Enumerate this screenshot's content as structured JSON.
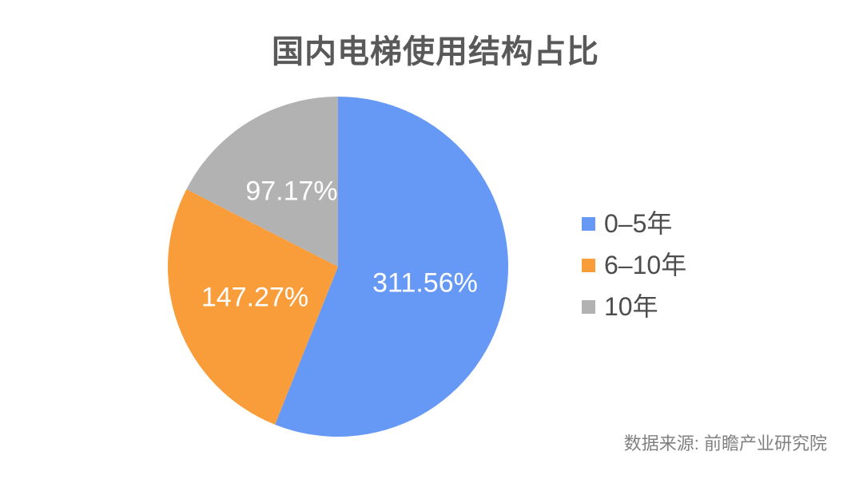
{
  "title": {
    "text": "国内电梯使用结构占比",
    "color": "#595959"
  },
  "source_note": {
    "text": "数据来源: 前瞻产业研究院",
    "color": "#808080"
  },
  "chart_data": {
    "type": "pie",
    "title": "国内电梯使用结构占比",
    "categories": [
      "0–5年",
      "6–10年",
      "10年"
    ],
    "values": [
      311.56,
      147.27,
      97.17
    ],
    "slice_labels": [
      "311.56%",
      "147.27%",
      "97.17%"
    ],
    "slice_colors": [
      "#6699F6",
      "#F99D3A",
      "#B2B2B2"
    ],
    "slice_label_color": "#FFFFFF",
    "legend_position": "right",
    "legend_text_color": "#4D4D4D",
    "start_angle_deg": 0,
    "direction": "clockwise"
  }
}
